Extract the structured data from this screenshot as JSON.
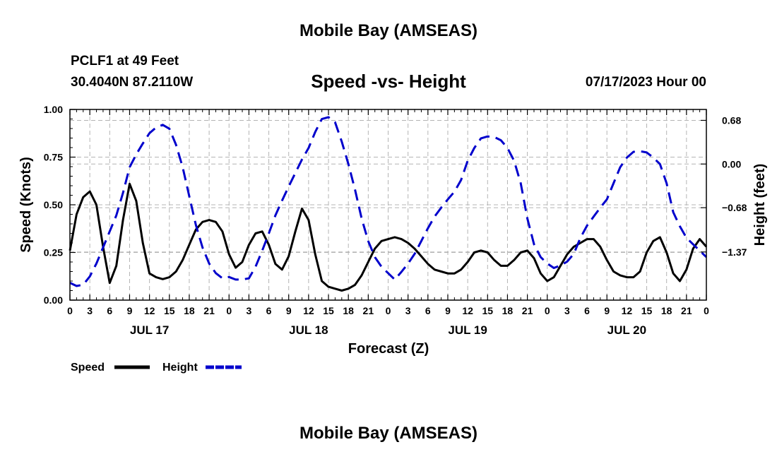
{
  "header": {
    "title": "Mobile Bay (AMSEAS)",
    "station": "PCLF1 at 49 Feet",
    "coords": "30.4040N  87.2110W",
    "subtitle": "Speed -vs- Height",
    "datetime": "07/17/2023 Hour 00"
  },
  "footer": {
    "title": "Mobile Bay (AMSEAS)"
  },
  "chart_data": {
    "type": "line",
    "xlabel": "Forecast (Z)",
    "ylabel": "Speed (Knots)",
    "ylabel_right": "Height (feet)",
    "xlim": [
      0,
      96
    ],
    "ylim": [
      0,
      1.0
    ],
    "ylim_right": [
      -2.12,
      0.85
    ],
    "grid": true,
    "x_tick_labels": [
      "0",
      "3",
      "6",
      "9",
      "12",
      "15",
      "18",
      "21",
      "0",
      "3",
      "6",
      "9",
      "12",
      "15",
      "18",
      "21",
      "0",
      "3",
      "6",
      "9",
      "12",
      "15",
      "18",
      "21",
      "0",
      "3",
      "6",
      "9",
      "12",
      "15",
      "18",
      "21",
      "0"
    ],
    "date_labels": [
      {
        "hour": 12,
        "label": "JUL 17"
      },
      {
        "hour": 36,
        "label": "JUL 18"
      },
      {
        "hour": 60,
        "label": "JUL 19"
      },
      {
        "hour": 84,
        "label": "JUL 20"
      }
    ],
    "y_ticks": [
      0.0,
      0.25,
      0.5,
      0.75,
      1.0
    ],
    "y_tick_labels": [
      "0.00",
      "0.25",
      "0.50",
      "0.75",
      "1.00"
    ],
    "y_right_ticks": [
      0.68,
      0.0,
      -0.68,
      -1.37
    ],
    "y_right_tick_labels": [
      "0.68",
      "0.00",
      "−0.68",
      "−1.37"
    ],
    "legend": [
      {
        "name": "Speed",
        "color": "#000000",
        "dash": "solid"
      },
      {
        "name": "Height",
        "color": "#0000cc",
        "dash": "dashed"
      }
    ],
    "series": [
      {
        "name": "Speed",
        "axis": "left",
        "color": "#000000",
        "x": [
          0,
          1,
          2,
          3,
          4,
          5,
          6,
          7,
          8,
          9,
          10,
          11,
          12,
          13,
          14,
          15,
          16,
          17,
          18,
          19,
          20,
          21,
          22,
          23,
          24,
          25,
          26,
          27,
          28,
          29,
          30,
          31,
          32,
          33,
          34,
          35,
          36,
          37,
          38,
          39,
          40,
          41,
          42,
          43,
          44,
          45,
          46,
          47,
          48,
          49,
          50,
          51,
          52,
          53,
          54,
          55,
          56,
          57,
          58,
          59,
          60,
          61,
          62,
          63,
          64,
          65,
          66,
          67,
          68,
          69,
          70,
          71,
          72,
          73,
          74,
          75,
          76,
          77,
          78,
          79,
          80,
          81,
          82,
          83,
          84,
          85,
          86,
          87,
          88,
          89,
          90,
          91,
          92,
          93,
          94,
          95,
          96
        ],
        "values": [
          0.26,
          0.45,
          0.54,
          0.57,
          0.5,
          0.28,
          0.09,
          0.18,
          0.42,
          0.61,
          0.52,
          0.3,
          0.14,
          0.12,
          0.11,
          0.12,
          0.15,
          0.21,
          0.29,
          0.37,
          0.41,
          0.42,
          0.41,
          0.36,
          0.24,
          0.17,
          0.2,
          0.29,
          0.35,
          0.36,
          0.29,
          0.19,
          0.16,
          0.23,
          0.36,
          0.48,
          0.42,
          0.24,
          0.1,
          0.07,
          0.06,
          0.05,
          0.06,
          0.08,
          0.13,
          0.2,
          0.27,
          0.31,
          0.32,
          0.33,
          0.32,
          0.3,
          0.27,
          0.23,
          0.19,
          0.16,
          0.15,
          0.14,
          0.14,
          0.16,
          0.2,
          0.25,
          0.26,
          0.25,
          0.21,
          0.18,
          0.18,
          0.21,
          0.25,
          0.26,
          0.22,
          0.14,
          0.1,
          0.12,
          0.18,
          0.24,
          0.28,
          0.3,
          0.32,
          0.32,
          0.28,
          0.21,
          0.15,
          0.13,
          0.12,
          0.12,
          0.15,
          0.25,
          0.31,
          0.33,
          0.25,
          0.14,
          0.1,
          0.16,
          0.27,
          0.32,
          0.28
        ]
      },
      {
        "name": "Height",
        "axis": "right",
        "color": "#0000cc",
        "x": [
          0,
          1,
          2,
          3,
          4,
          5,
          6,
          7,
          8,
          9,
          10,
          11,
          12,
          13,
          14,
          15,
          16,
          17,
          18,
          19,
          20,
          21,
          22,
          23,
          24,
          25,
          26,
          27,
          28,
          29,
          30,
          31,
          32,
          33,
          34,
          35,
          36,
          37,
          38,
          39,
          40,
          41,
          42,
          43,
          44,
          45,
          46,
          47,
          48,
          49,
          50,
          51,
          52,
          53,
          54,
          55,
          56,
          57,
          58,
          59,
          60,
          61,
          62,
          63,
          64,
          65,
          66,
          67,
          68,
          69,
          70,
          71,
          72,
          73,
          74,
          75,
          76,
          77,
          78,
          79,
          80,
          81,
          82,
          83,
          84,
          85,
          86,
          87,
          88,
          89,
          90,
          91,
          92,
          93,
          94,
          95,
          96
        ],
        "values": [
          -1.85,
          -1.9,
          -1.88,
          -1.75,
          -1.55,
          -1.3,
          -1.05,
          -0.8,
          -0.45,
          -0.05,
          0.15,
          0.32,
          0.48,
          0.57,
          0.61,
          0.55,
          0.3,
          -0.05,
          -0.5,
          -0.95,
          -1.3,
          -1.55,
          -1.7,
          -1.78,
          -1.76,
          -1.8,
          -1.8,
          -1.78,
          -1.6,
          -1.35,
          -1.08,
          -0.8,
          -0.57,
          -0.35,
          -0.14,
          0.07,
          0.25,
          0.5,
          0.7,
          0.73,
          0.65,
          0.35,
          0.0,
          -0.4,
          -0.85,
          -1.2,
          -1.45,
          -1.6,
          -1.7,
          -1.8,
          -1.68,
          -1.55,
          -1.4,
          -1.2,
          -1.0,
          -0.82,
          -0.68,
          -0.55,
          -0.43,
          -0.25,
          0.05,
          0.25,
          0.4,
          0.43,
          0.42,
          0.37,
          0.25,
          0.05,
          -0.3,
          -0.85,
          -1.25,
          -1.45,
          -1.55,
          -1.62,
          -1.58,
          -1.52,
          -1.4,
          -1.15,
          -0.96,
          -0.82,
          -0.68,
          -0.55,
          -0.3,
          -0.05,
          0.1,
          0.19,
          0.2,
          0.18,
          0.1,
          0.0,
          -0.3,
          -0.75,
          -0.97,
          -1.15,
          -1.25,
          -1.35,
          -1.45
        ]
      }
    ]
  }
}
